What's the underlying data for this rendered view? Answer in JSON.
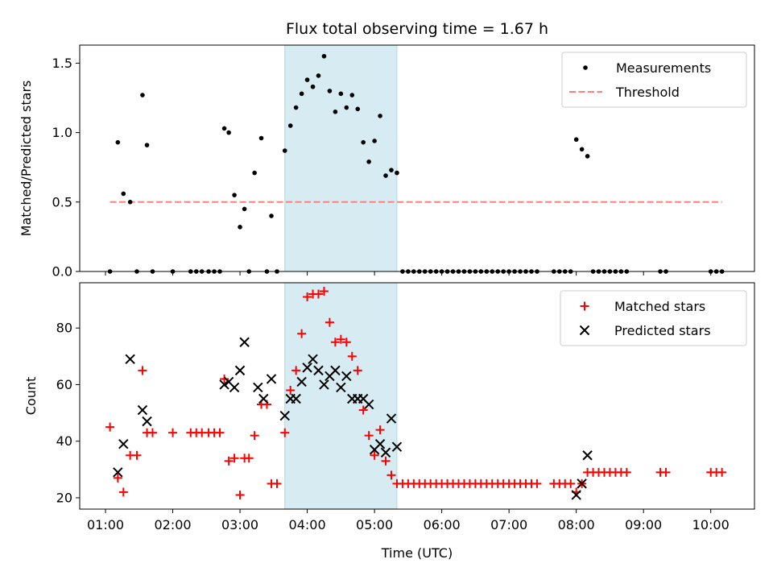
{
  "chart_data": [
    {
      "type": "scatter",
      "title": "Flux total observing time = 1.67 h",
      "xlabel": "",
      "ylabel": "Matched/Predicted stars",
      "xlim": [
        "00:37",
        "10:39"
      ],
      "ylim": [
        0,
        1.63
      ],
      "yticks": [
        0.0,
        0.5,
        1.0,
        1.5
      ],
      "ytick_labels": [
        "0.0",
        "0.5",
        "1.0",
        "1.5"
      ],
      "highlight_span": [
        "03:40",
        "05:20"
      ],
      "legend": {
        "placement": "top-right",
        "entries": [
          "Measurements",
          "Threshold"
        ]
      },
      "series": [
        {
          "name": "Measurements",
          "marker": "dot",
          "color": "#000000",
          "x": [
            "01:04",
            "01:11",
            "01:16",
            "01:22",
            "01:28",
            "01:33",
            "01:37",
            "01:42",
            "02:00",
            "02:16",
            "02:21",
            "02:26",
            "02:32",
            "02:37",
            "02:42",
            "02:46",
            "02:50",
            "02:55",
            "03:00",
            "03:04",
            "03:08",
            "03:13",
            "03:19",
            "03:24",
            "03:28",
            "03:33",
            "03:40",
            "03:45",
            "03:50",
            "03:55",
            "04:00",
            "04:05",
            "04:10",
            "04:15",
            "04:20",
            "04:25",
            "04:30",
            "04:35",
            "04:40",
            "04:45",
            "04:50",
            "04:55",
            "05:00",
            "05:05",
            "05:10",
            "05:15",
            "05:20",
            "05:25",
            "05:30",
            "05:35",
            "05:40",
            "05:45",
            "05:50",
            "05:55",
            "06:00",
            "06:05",
            "06:10",
            "06:15",
            "06:20",
            "06:25",
            "06:30",
            "06:35",
            "06:40",
            "06:45",
            "06:50",
            "06:55",
            "07:00",
            "07:05",
            "07:10",
            "07:15",
            "07:20",
            "07:25",
            "07:40",
            "07:45",
            "07:50",
            "07:55",
            "08:00",
            "08:05",
            "08:10",
            "08:15",
            "08:20",
            "08:25",
            "08:30",
            "08:35",
            "08:40",
            "08:45",
            "09:15",
            "09:20",
            "10:00",
            "10:05",
            "10:10"
          ],
          "y": [
            0.0,
            0.93,
            0.56,
            0.5,
            0.0,
            1.27,
            0.91,
            0.0,
            0.0,
            0.0,
            0.0,
            0.0,
            0.0,
            0.0,
            0.0,
            1.03,
            1.0,
            0.55,
            0.32,
            0.45,
            0.0,
            0.71,
            0.96,
            0.0,
            0.4,
            0.0,
            0.87,
            1.05,
            1.18,
            1.28,
            1.38,
            1.33,
            1.41,
            1.55,
            1.3,
            1.15,
            1.28,
            1.18,
            1.27,
            1.17,
            0.93,
            0.79,
            0.94,
            1.12,
            0.69,
            0.73,
            0.71,
            0.0,
            0.0,
            0.0,
            0.0,
            0.0,
            0.0,
            0.0,
            0.0,
            0.0,
            0.0,
            0.0,
            0.0,
            0.0,
            0.0,
            0.0,
            0.0,
            0.0,
            0.0,
            0.0,
            0.0,
            0.0,
            0.0,
            0.0,
            0.0,
            0.0,
            0.0,
            0.0,
            0.0,
            0.0,
            0.95,
            0.88,
            0.83,
            0.0,
            0.0,
            0.0,
            0.0,
            0.0,
            0.0,
            0.0,
            0.0,
            0.0,
            0.0,
            0.0,
            0.0
          ]
        },
        {
          "name": "Threshold",
          "marker": "dashed-line",
          "color": "#ff7f7f",
          "x": [
            "01:04",
            "10:10"
          ],
          "y": [
            0.5,
            0.5
          ]
        }
      ]
    },
    {
      "type": "scatter",
      "title": "",
      "xlabel": "Time (UTC)",
      "ylabel": "Count",
      "xlim": [
        "00:37",
        "10:39"
      ],
      "ylim": [
        16,
        96
      ],
      "yticks": [
        20,
        40,
        60,
        80
      ],
      "ytick_labels": [
        "20",
        "40",
        "60",
        "80"
      ],
      "xticks": [
        "01:00",
        "02:00",
        "03:00",
        "04:00",
        "05:00",
        "06:00",
        "07:00",
        "08:00",
        "09:00",
        "10:00"
      ],
      "xtick_labels": [
        "01:00",
        "02:00",
        "03:00",
        "04:00",
        "05:00",
        "06:00",
        "07:00",
        "08:00",
        "09:00",
        "10:00"
      ],
      "highlight_span": [
        "03:40",
        "05:20"
      ],
      "legend": {
        "placement": "top-right",
        "entries": [
          "Matched stars",
          "Predicted stars"
        ]
      },
      "series": [
        {
          "name": "Matched stars",
          "marker": "plus",
          "color": "#ff0000",
          "x": [
            "01:04",
            "01:11",
            "01:16",
            "01:22",
            "01:28",
            "01:33",
            "01:37",
            "01:42",
            "02:00",
            "02:16",
            "02:21",
            "02:26",
            "02:32",
            "02:37",
            "02:42",
            "02:46",
            "02:50",
            "02:55",
            "03:00",
            "03:04",
            "03:08",
            "03:13",
            "03:19",
            "03:24",
            "03:28",
            "03:33",
            "03:40",
            "03:45",
            "03:50",
            "03:55",
            "04:00",
            "04:05",
            "04:10",
            "04:15",
            "04:20",
            "04:25",
            "04:30",
            "04:35",
            "04:40",
            "04:45",
            "04:50",
            "04:55",
            "05:00",
            "05:05",
            "05:10",
            "05:15",
            "05:20",
            "05:25",
            "05:30",
            "05:35",
            "05:40",
            "05:45",
            "05:50",
            "05:55",
            "06:00",
            "06:05",
            "06:10",
            "06:15",
            "06:20",
            "06:25",
            "06:30",
            "06:35",
            "06:40",
            "06:45",
            "06:50",
            "06:55",
            "07:00",
            "07:05",
            "07:10",
            "07:15",
            "07:20",
            "07:25",
            "07:40",
            "07:45",
            "07:50",
            "07:55",
            "08:00",
            "08:05",
            "08:10",
            "08:15",
            "08:20",
            "08:25",
            "08:30",
            "08:35",
            "08:40",
            "08:45",
            "09:15",
            "09:20",
            "10:00",
            "10:05",
            "10:10"
          ],
          "y": [
            45,
            27,
            22,
            35,
            35,
            65,
            43,
            43,
            43,
            43,
            43,
            43,
            43,
            43,
            43,
            62,
            33,
            34,
            21,
            34,
            34,
            42,
            53,
            53,
            25,
            25,
            43,
            58,
            65,
            78,
            91,
            92,
            92,
            93,
            82,
            75,
            76,
            75,
            70,
            65,
            51,
            42,
            35,
            44,
            33,
            28,
            25,
            25,
            25,
            25,
            25,
            25,
            25,
            25,
            25,
            25,
            25,
            25,
            25,
            25,
            25,
            25,
            25,
            25,
            25,
            25,
            25,
            25,
            25,
            25,
            25,
            25,
            25,
            25,
            25,
            25,
            22,
            25,
            29,
            29,
            29,
            29,
            29,
            29,
            29,
            29,
            29,
            29,
            29,
            29,
            29
          ]
        },
        {
          "name": "Predicted stars",
          "marker": "x",
          "color": "#000000",
          "x": [
            "01:11",
            "01:16",
            "01:22",
            "01:33",
            "01:37",
            "02:46",
            "02:50",
            "02:55",
            "03:00",
            "03:04",
            "03:16",
            "03:21",
            "03:28",
            "03:40",
            "03:45",
            "03:50",
            "03:55",
            "04:00",
            "04:05",
            "04:10",
            "04:15",
            "04:20",
            "04:25",
            "04:30",
            "04:35",
            "04:40",
            "04:45",
            "04:50",
            "04:55",
            "05:00",
            "05:05",
            "05:10",
            "05:15",
            "05:20",
            "08:00",
            "08:05",
            "08:10"
          ],
          "y": [
            29,
            39,
            69,
            51,
            47,
            60,
            61,
            59,
            65,
            75,
            59,
            55,
            62,
            49,
            55,
            55,
            61,
            66,
            69,
            65,
            60,
            63,
            65,
            59,
            63,
            55,
            55,
            55,
            53,
            37,
            39,
            36,
            48,
            38,
            21,
            25,
            35
          ]
        }
      ]
    }
  ]
}
